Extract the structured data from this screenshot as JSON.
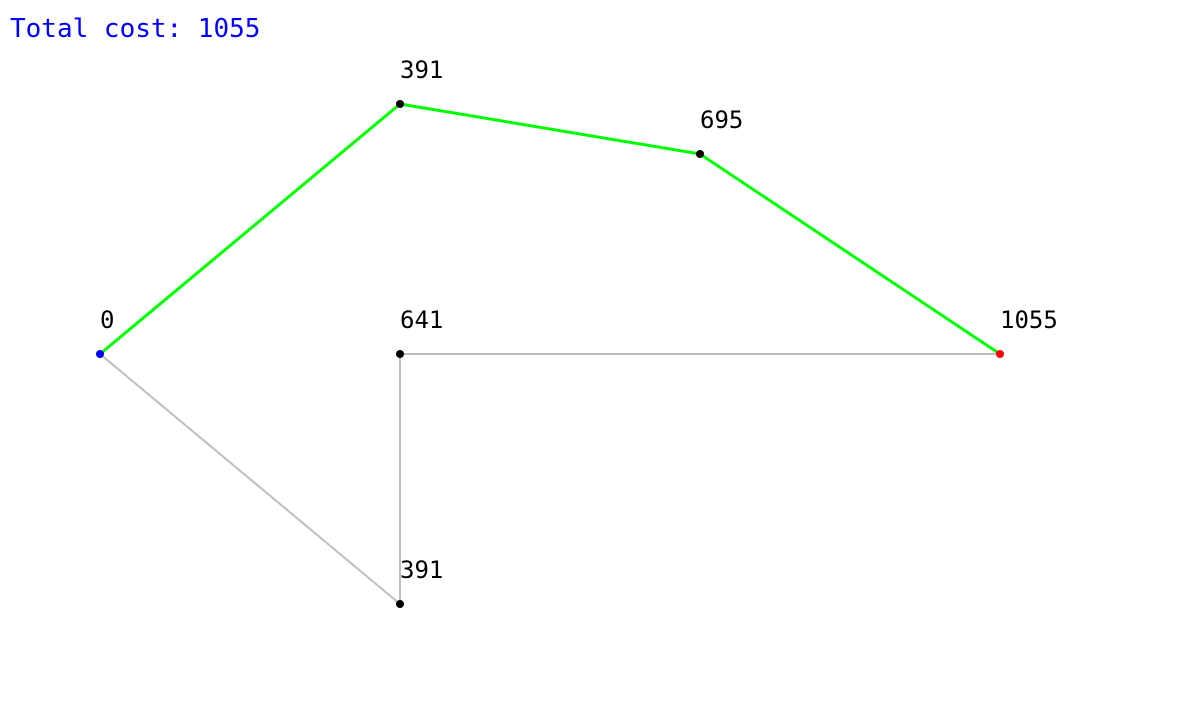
{
  "header": {
    "total_cost_text": "Total cost: 1055"
  },
  "colors": {
    "total_cost": "#0000ff",
    "path_edge": "#00ff00",
    "other_edge": "#bebebe",
    "node": "#000000",
    "start_node": "#0000ff",
    "end_node": "#ff0000",
    "label": "#000000"
  },
  "graph": {
    "nodes": [
      {
        "id": "n0",
        "label": "0",
        "role": "start"
      },
      {
        "id": "n1",
        "label": "391",
        "role": "normal"
      },
      {
        "id": "n2",
        "label": "695",
        "role": "normal"
      },
      {
        "id": "n3",
        "label": "1055",
        "role": "end"
      },
      {
        "id": "n4",
        "label": "641",
        "role": "normal"
      },
      {
        "id": "n5",
        "label": "391",
        "role": "normal"
      }
    ],
    "edges": [
      {
        "from": "n0",
        "to": "n1",
        "on_path": true
      },
      {
        "from": "n1",
        "to": "n2",
        "on_path": true
      },
      {
        "from": "n2",
        "to": "n3",
        "on_path": true
      },
      {
        "from": "n0",
        "to": "n5",
        "on_path": false
      },
      {
        "from": "n5",
        "to": "n4",
        "on_path": false
      },
      {
        "from": "n4",
        "to": "n3",
        "on_path": false
      }
    ]
  }
}
